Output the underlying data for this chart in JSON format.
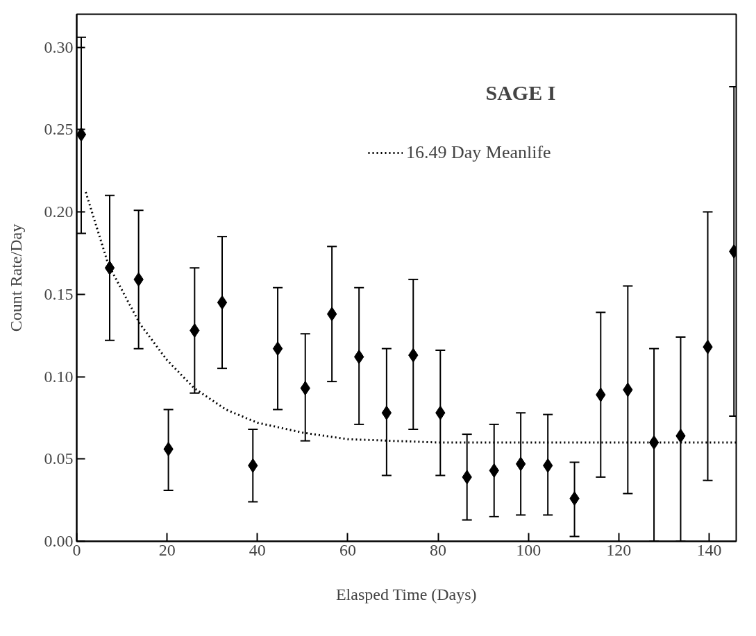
{
  "chart_data": {
    "type": "scatter",
    "title": "SAGE I",
    "xlabel": "Elasped Time (Days)",
    "ylabel": "Count Rate/Day",
    "xlim": [
      0,
      146
    ],
    "ylim": [
      0,
      0.32
    ],
    "xticks": [
      0,
      20,
      40,
      60,
      80,
      100,
      120,
      140
    ],
    "yticks": [
      {
        "value": 0,
        "label": "0.00"
      },
      0.05,
      {
        "value": 0.1,
        "label": "0.10"
      },
      0.15,
      {
        "value": 0.2,
        "label": "0.20"
      },
      0.25,
      {
        "value": 0.3,
        "label": "0.30"
      }
    ],
    "grid": false,
    "legend": "top right",
    "marker": "diamond",
    "series": [
      {
        "color": "#000000",
        "x": [
          1.0,
          7.3,
          13.7,
          20.3,
          26.1,
          32.2,
          39.0,
          44.5,
          50.6,
          56.5,
          62.5,
          68.6,
          74.5,
          80.5,
          86.4,
          92.4,
          98.3,
          104.3,
          110.2,
          116.0,
          122.0,
          127.8,
          133.7,
          139.7,
          145.5
        ],
        "values": [
          0.247,
          0.166,
          0.159,
          0.056,
          0.128,
          0.145,
          0.046,
          0.117,
          0.093,
          0.138,
          0.112,
          0.078,
          0.113,
          0.078,
          0.039,
          0.043,
          0.047,
          0.046,
          0.026,
          0.089,
          0.092,
          0.06,
          0.064,
          0.118,
          0.176
        ],
        "errors": [
          [
            0.187,
            0.306
          ],
          [
            0.122,
            0.21
          ],
          [
            0.117,
            0.201
          ],
          [
            0.031,
            0.08
          ],
          [
            0.09,
            0.166
          ],
          [
            0.105,
            0.185
          ],
          [
            0.024,
            0.068
          ],
          [
            0.08,
            0.154
          ],
          [
            0.061,
            0.126
          ],
          [
            0.097,
            0.179
          ],
          [
            0.071,
            0.154
          ],
          [
            0.04,
            0.117
          ],
          [
            0.068,
            0.159
          ],
          [
            0.04,
            0.116
          ],
          [
            0.013,
            0.065
          ],
          [
            0.015,
            0.071
          ],
          [
            0.016,
            0.078
          ],
          [
            0.016,
            0.077
          ],
          [
            0.003,
            0.048
          ],
          [
            0.039,
            0.139
          ],
          [
            0.029,
            0.155
          ],
          [
            0.0,
            0.117
          ],
          [
            0.0,
            0.124
          ],
          [
            0.037,
            0.2
          ],
          [
            0.076,
            0.276
          ]
        ]
      },
      {
        "type": "line",
        "name": "16.49 Day Meanlife",
        "color": "#000000",
        "line_style": "dotted",
        "marker": "none",
        "x": [
          2,
          7,
          14,
          20,
          26,
          33,
          40,
          50,
          60,
          80,
          110,
          146
        ],
        "values": [
          0.212,
          0.168,
          0.132,
          0.11,
          0.093,
          0.08,
          0.072,
          0.066,
          0.062,
          0.06,
          0.06,
          0.06
        ]
      }
    ]
  }
}
